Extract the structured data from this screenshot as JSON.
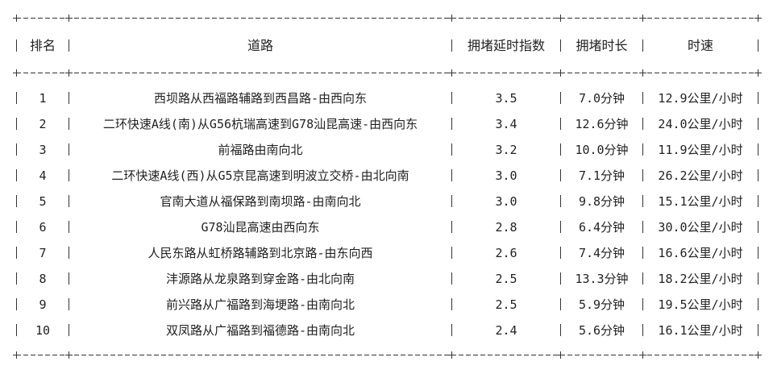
{
  "headers": [
    "排名",
    "道路",
    "拥堵延时指数",
    "拥堵时长",
    "时速"
  ],
  "rows": [
    {
      "rank": "1",
      "road": "西坝路从西福路辅路到西昌路-由西向东",
      "index": "3.5",
      "duration": "7.0分钟",
      "speed": "12.9公里/小时"
    },
    {
      "rank": "2",
      "road": "二环快速A线(南)从G56杭瑞高速到G78汕昆高速-由西向东",
      "index": "3.4",
      "duration": "12.6分钟",
      "speed": "24.0公里/小时"
    },
    {
      "rank": "3",
      "road": "前福路由南向北",
      "index": "3.2",
      "duration": "10.0分钟",
      "speed": "11.9公里/小时"
    },
    {
      "rank": "4",
      "road": "二环快速A线(西)从G5京昆高速到明波立交桥-由北向南",
      "index": "3.0",
      "duration": "7.1分钟",
      "speed": "26.2公里/小时"
    },
    {
      "rank": "5",
      "road": "官南大道从福保路到南坝路-由南向北",
      "index": "3.0",
      "duration": "9.8分钟",
      "speed": "15.1公里/小时"
    },
    {
      "rank": "6",
      "road": "G78汕昆高速由西向东",
      "index": "2.8",
      "duration": "6.4分钟",
      "speed": "30.0公里/小时"
    },
    {
      "rank": "7",
      "road": "人民东路从虹桥路辅路到北京路-由东向西",
      "index": "2.6",
      "duration": "7.4分钟",
      "speed": "16.6公里/小时"
    },
    {
      "rank": "8",
      "road": "沣源路从龙泉路到穿金路-由北向南",
      "index": "2.5",
      "duration": "13.3分钟",
      "speed": "18.2公里/小时"
    },
    {
      "rank": "9",
      "road": "前兴路从广福路到海埂路-由南向北",
      "index": "2.5",
      "duration": "5.9分钟",
      "speed": "19.5公里/小时"
    },
    {
      "rank": "10",
      "road": "双凤路从广福路到福德路-由南向北",
      "index": "2.4",
      "duration": "5.6分钟",
      "speed": "16.1公里/小时"
    }
  ]
}
